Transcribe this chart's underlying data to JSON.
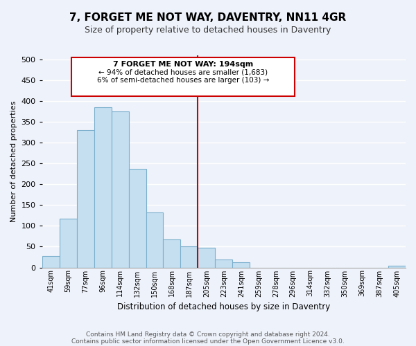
{
  "title": "7, FORGET ME NOT WAY, DAVENTRY, NN11 4GR",
  "subtitle": "Size of property relative to detached houses in Daventry",
  "xlabel": "Distribution of detached houses by size in Daventry",
  "ylabel": "Number of detached properties",
  "bar_labels": [
    "41sqm",
    "59sqm",
    "77sqm",
    "96sqm",
    "114sqm",
    "132sqm",
    "150sqm",
    "168sqm",
    "187sqm",
    "205sqm",
    "223sqm",
    "241sqm",
    "259sqm",
    "278sqm",
    "296sqm",
    "314sqm",
    "332sqm",
    "350sqm",
    "369sqm",
    "387sqm",
    "405sqm"
  ],
  "bar_values": [
    28,
    117,
    330,
    385,
    375,
    237,
    133,
    68,
    50,
    47,
    19,
    13,
    0,
    0,
    0,
    0,
    0,
    0,
    0,
    0,
    5
  ],
  "bar_color": "#c5dff0",
  "bar_edge_color": "#7aaecc",
  "line_x_index": 8.5,
  "annotation_line1": "7 FORGET ME NOT WAY: 194sqm",
  "annotation_line2": "← 94% of detached houses are smaller (1,683)",
  "annotation_line3": "6% of semi-detached houses are larger (103) →",
  "vline_color": "#cc0000",
  "box_edge_color": "#cc0000",
  "ylim": [
    0,
    510
  ],
  "yticks": [
    0,
    50,
    100,
    150,
    200,
    250,
    300,
    350,
    400,
    450,
    500
  ],
  "footnote1": "Contains HM Land Registry data © Crown copyright and database right 2024.",
  "footnote2": "Contains public sector information licensed under the Open Government Licence v3.0.",
  "background_color": "#eef2fa",
  "grid_color": "#ffffff",
  "title_fontsize": 11,
  "subtitle_fontsize": 9
}
